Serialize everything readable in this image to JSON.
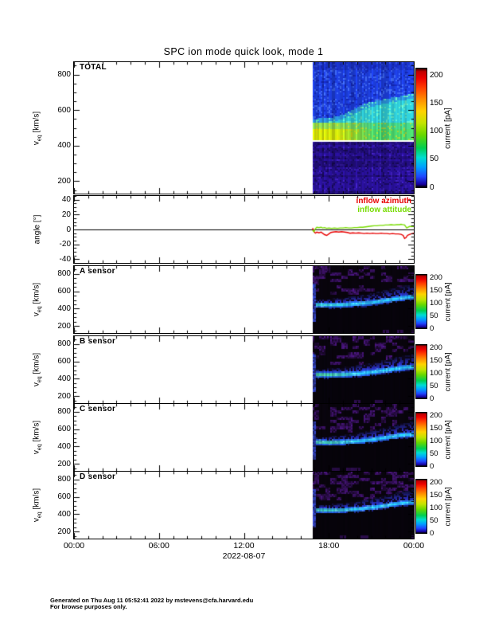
{
  "title": "SPC ion mode quick look, mode 1",
  "footer": {
    "line1": "Generated on Thu Aug 11 05:52:41 2022 by mstevens@cfa.harvard.edu",
    "line2": "For browse purposes only."
  },
  "chart_data": {
    "type": "heatmap",
    "title": "SPC ion mode quick look, mode 1",
    "time": {
      "range_hours": [
        0,
        24
      ],
      "data_start_hour": 16.87,
      "minor_step_hours": 1,
      "major_step_hours": 6,
      "ticks": [
        {
          "hour": 0,
          "label": "00:00"
        },
        {
          "hour": 6,
          "label": "06:00"
        },
        {
          "hour": 12,
          "label": "12:00"
        },
        {
          "hour": 18,
          "label": "18:00"
        },
        {
          "hour": 24,
          "label": "00:00"
        }
      ],
      "date_label": "2022-08-07"
    },
    "colorbar": {
      "label": "current [pA]",
      "ticks": [
        0,
        50,
        100,
        150,
        200
      ],
      "max_value": 212,
      "stops": [
        [
          0,
          "#000000"
        ],
        [
          0.025,
          "#16009e"
        ],
        [
          0.09,
          "#1e46ff"
        ],
        [
          0.17,
          "#00a0ff"
        ],
        [
          0.25,
          "#00ddd0"
        ],
        [
          0.33,
          "#00cf50"
        ],
        [
          0.44,
          "#66d800"
        ],
        [
          0.54,
          "#c3e400"
        ],
        [
          0.64,
          "#ffd200"
        ],
        [
          0.74,
          "#ff8c00"
        ],
        [
          0.84,
          "#ff3c00"
        ],
        [
          0.92,
          "#eb0000"
        ],
        [
          0.975,
          "#c00000"
        ],
        [
          1,
          "#280000"
        ]
      ]
    },
    "palette": {
      "frame": "#000000",
      "azimuth_red": "#e80000",
      "attitude_green": "#78dc00",
      "total_blue": "#1c3cd7",
      "total_cyan": "#2dc3cd",
      "total_yellow": "#cdde0a",
      "total_green": "#46cd69",
      "total_lower_purple": "#28109b",
      "white_line": "#ffffff",
      "sensor_bg": "#060309",
      "sensor_beam_cyan": "#28d7fa",
      "sensor_beam_green": "#50e678",
      "sensor_fuzz_blue": "#282db9",
      "sensor_purple": "#46147d"
    },
    "panels": [
      {
        "id": "total",
        "kind": "spectrogram",
        "style": "total",
        "label": "TOTAL",
        "ylabel_pre": "v",
        "ylabel_sub": "eq",
        "ylabel_post": " [km/s]",
        "yticks": [
          200,
          400,
          600,
          800
        ],
        "ylim": [
          130,
          870
        ],
        "y_minor_step": 50,
        "y_major_step": 200,
        "seed": 3,
        "features": {
          "white_line_v": 430,
          "lower_dark_top": 424,
          "yellow_band": [
            436,
            530
          ],
          "yellow_to_green_hour": 18.6,
          "cyan_top_track": [
            [
              16.9,
              555
            ],
            [
              18,
              560
            ],
            [
              18.8,
              575
            ],
            [
              19.5,
              600
            ],
            [
              20.5,
              640
            ],
            [
              21.5,
              660
            ],
            [
              22.5,
              675
            ],
            [
              23.5,
              690
            ],
            [
              24,
              700
            ]
          ]
        }
      },
      {
        "id": "angle",
        "kind": "line",
        "ylabel": "angle [°]",
        "yticks": [
          -40,
          -20,
          0,
          20,
          40
        ],
        "ylim": [
          -45,
          45
        ],
        "y_minor_step": 5,
        "y_major_step": 20,
        "zero_line": 0,
        "legend": [
          {
            "label": "inflow azimuth",
            "color": "#e80000"
          },
          {
            "label": "inflow attitude",
            "color": "#78dc00"
          }
        ],
        "series": [
          {
            "name": "inflow azimuth",
            "color": "#e80000",
            "points": [
              [
                16.85,
                2
              ],
              [
                16.95,
                -3
              ],
              [
                17.05,
                -5
              ],
              [
                17.15,
                -3.5
              ],
              [
                17.3,
                -4.5
              ],
              [
                17.45,
                -3.5
              ],
              [
                17.55,
                -5
              ],
              [
                17.7,
                -7
              ],
              [
                17.85,
                -8
              ],
              [
                18.0,
                -6
              ],
              [
                18.15,
                -4
              ],
              [
                18.3,
                -3.5
              ],
              [
                18.5,
                -3
              ],
              [
                18.7,
                -3.5
              ],
              [
                18.9,
                -3
              ],
              [
                19.1,
                -3.5
              ],
              [
                19.3,
                -4
              ],
              [
                19.5,
                -5
              ],
              [
                19.7,
                -4.5
              ],
              [
                19.9,
                -5
              ],
              [
                20.1,
                -4.5
              ],
              [
                20.3,
                -5
              ],
              [
                20.5,
                -5.5
              ],
              [
                20.7,
                -5
              ],
              [
                20.9,
                -5.5
              ],
              [
                21.1,
                -5
              ],
              [
                21.3,
                -5.5
              ],
              [
                21.5,
                -5.5
              ],
              [
                21.7,
                -5
              ],
              [
                21.9,
                -5.5
              ],
              [
                22.1,
                -5.5
              ],
              [
                22.3,
                -6
              ],
              [
                22.5,
                -5.5
              ],
              [
                22.7,
                -6
              ],
              [
                22.9,
                -6
              ],
              [
                23.1,
                -6.5
              ],
              [
                23.25,
                -8
              ],
              [
                23.35,
                -12
              ],
              [
                23.45,
                -11
              ],
              [
                23.55,
                -8
              ],
              [
                23.65,
                -7
              ],
              [
                23.8,
                -6
              ],
              [
                23.9,
                -5.5
              ],
              [
                24,
                -5
              ]
            ]
          },
          {
            "name": "inflow attitude",
            "color": "#78dc00",
            "points": [
              [
                16.85,
                -1
              ],
              [
                16.95,
                -3
              ],
              [
                17.05,
                1
              ],
              [
                17.15,
                3
              ],
              [
                17.3,
                2.5
              ],
              [
                17.45,
                3
              ],
              [
                17.55,
                2
              ],
              [
                17.7,
                2.5
              ],
              [
                17.85,
                1.5
              ],
              [
                18.0,
                2
              ],
              [
                18.2,
                1.5
              ],
              [
                18.4,
                2
              ],
              [
                18.6,
                1.5
              ],
              [
                18.8,
                2
              ],
              [
                19.0,
                2
              ],
              [
                19.2,
                2.5
              ],
              [
                19.4,
                2
              ],
              [
                19.6,
                2
              ],
              [
                19.8,
                2.5
              ],
              [
                20.0,
                2.5
              ],
              [
                20.2,
                3
              ],
              [
                20.4,
                3
              ],
              [
                20.6,
                3.5
              ],
              [
                20.8,
                4
              ],
              [
                21.0,
                4.5
              ],
              [
                21.2,
                5
              ],
              [
                21.4,
                5
              ],
              [
                21.6,
                5.5
              ],
              [
                21.8,
                5.5
              ],
              [
                22.0,
                6
              ],
              [
                22.2,
                6
              ],
              [
                22.4,
                6.5
              ],
              [
                22.6,
                6
              ],
              [
                22.8,
                6.5
              ],
              [
                23.0,
                6.5
              ],
              [
                23.1,
                7
              ],
              [
                23.2,
                6.5
              ],
              [
                23.35,
                6
              ],
              [
                23.5,
                2
              ],
              [
                23.6,
                3
              ],
              [
                23.7,
                4
              ],
              [
                23.85,
                4
              ],
              [
                24,
                4
              ]
            ]
          }
        ]
      },
      {
        "id": "a",
        "kind": "spectrogram",
        "style": "sensor",
        "label": "A sensor",
        "ylabel_pre": "v",
        "ylabel_sub": "eq",
        "ylabel_post": " [km/s]",
        "yticks": [
          200,
          400,
          600,
          800
        ],
        "ylim": [
          120,
          890
        ],
        "y_minor_step": 50,
        "y_major_step": 200,
        "seed": 7,
        "beam_track": [
          [
            16.9,
            455
          ],
          [
            18,
            452
          ],
          [
            19,
            455
          ],
          [
            20,
            465
          ],
          [
            21,
            480
          ],
          [
            22,
            505
          ],
          [
            23,
            530
          ],
          [
            24,
            545
          ]
        ],
        "beam_half_width": 30,
        "green_amount": 0.35,
        "purple_density": 0.45
      },
      {
        "id": "b",
        "kind": "spectrogram",
        "style": "sensor",
        "label": "B sensor",
        "ylabel_pre": "v",
        "ylabel_sub": "eq",
        "ylabel_post": " [km/s]",
        "yticks": [
          200,
          400,
          600,
          800
        ],
        "ylim": [
          120,
          890
        ],
        "y_minor_step": 50,
        "y_major_step": 200,
        "seed": 13,
        "beam_track": [
          [
            16.9,
            458
          ],
          [
            18,
            455
          ],
          [
            19,
            458
          ],
          [
            20,
            468
          ],
          [
            21,
            485
          ],
          [
            22,
            508
          ],
          [
            23,
            532
          ],
          [
            24,
            548
          ]
        ],
        "beam_half_width": 32,
        "green_amount": 0.85,
        "purple_density": 0.6
      },
      {
        "id": "c",
        "kind": "spectrogram",
        "style": "sensor",
        "label": "C sensor",
        "ylabel_pre": "v",
        "ylabel_sub": "eq",
        "ylabel_post": " [km/s]",
        "yticks": [
          200,
          400,
          600,
          800
        ],
        "ylim": [
          120,
          890
        ],
        "y_minor_step": 50,
        "y_major_step": 200,
        "seed": 29,
        "beam_track": [
          [
            16.9,
            460
          ],
          [
            18,
            456
          ],
          [
            19,
            460
          ],
          [
            20,
            470
          ],
          [
            21,
            488
          ],
          [
            22,
            512
          ],
          [
            23,
            538
          ],
          [
            24,
            552
          ]
        ],
        "beam_half_width": 30,
        "green_amount": 0.7,
        "purple_density": 0.75
      },
      {
        "id": "d",
        "kind": "spectrogram",
        "style": "sensor",
        "label": "D sensor",
        "ylabel_pre": "v",
        "ylabel_sub": "eq",
        "ylabel_post": " [km/s]",
        "yticks": [
          200,
          400,
          600,
          800
        ],
        "ylim": [
          120,
          890
        ],
        "y_minor_step": 50,
        "y_major_step": 200,
        "seed": 41,
        "beam_track": [
          [
            16.9,
            458
          ],
          [
            18,
            455
          ],
          [
            19,
            458
          ],
          [
            20,
            468
          ],
          [
            21,
            486
          ],
          [
            22,
            510
          ],
          [
            23,
            535
          ],
          [
            24,
            550
          ]
        ],
        "beam_half_width": 28,
        "green_amount": 0.6,
        "purple_density": 0.9
      }
    ]
  }
}
